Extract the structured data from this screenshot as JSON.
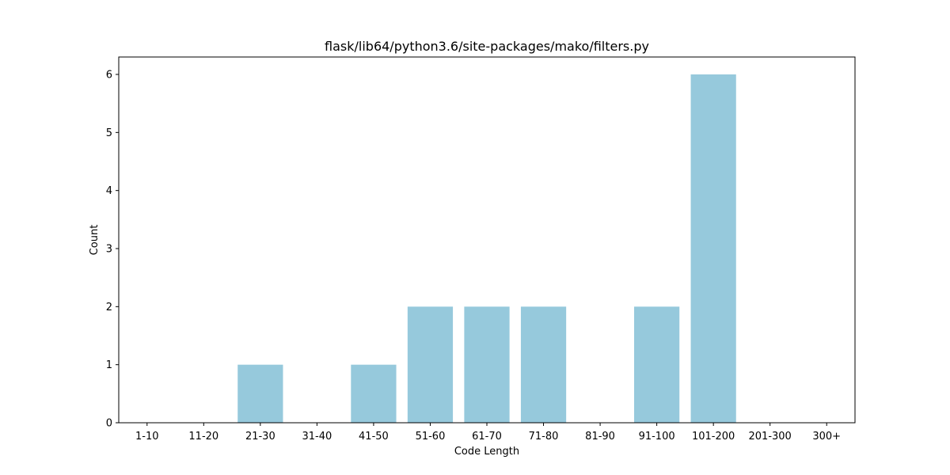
{
  "chart_data": {
    "type": "bar",
    "title": "flask/lib64/python3.6/site-packages/mako/filters.py",
    "xlabel": "Code Length",
    "ylabel": "Count",
    "categories": [
      "1-10",
      "11-20",
      "21-30",
      "31-40",
      "41-50",
      "51-60",
      "61-70",
      "71-80",
      "81-90",
      "91-100",
      "101-200",
      "201-300",
      "300+"
    ],
    "values": [
      0,
      0,
      1,
      0,
      1,
      2,
      2,
      2,
      0,
      2,
      6,
      0,
      0
    ],
    "ylim": [
      0,
      6.3
    ],
    "yticks": [
      0,
      1,
      2,
      3,
      4,
      5,
      6
    ],
    "bar_color": "#96c9dc",
    "grid": false,
    "legend": "none"
  }
}
